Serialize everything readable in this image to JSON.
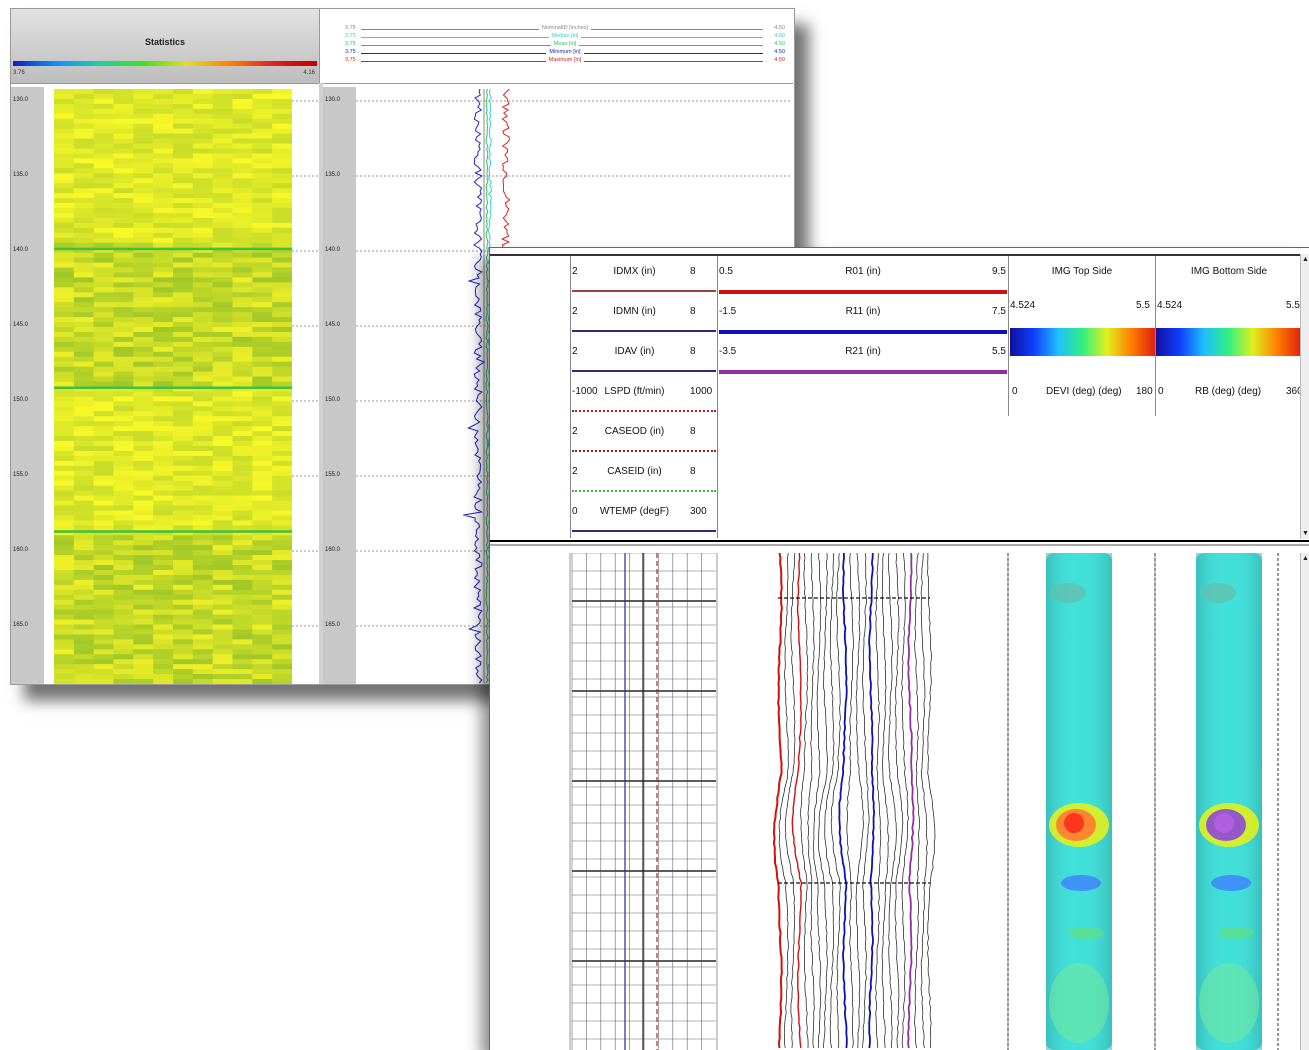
{
  "back_window": {
    "stats": {
      "title": "Statistics",
      "scale_min": "3.76",
      "scale_max": "4.16"
    },
    "legend": [
      {
        "left": "3.75",
        "name": "NominalID [inches]",
        "right": "4.50",
        "color": "#888888"
      },
      {
        "left": "3.75",
        "name": "Median [in]",
        "right": "4.50",
        "color": "#30d0d0"
      },
      {
        "left": "3.75",
        "name": "Mean [in]",
        "right": "4.50",
        "color": "#30c060"
      },
      {
        "left": "3.75",
        "name": "Minimum [in]",
        "right": "4.50",
        "color": "#2020d0"
      },
      {
        "left": "3.75",
        "name": "Maximum [in]",
        "right": "4.50",
        "color": "#e02020"
      }
    ],
    "depths": [
      "130.0",
      "135.0",
      "140.0",
      "145.0",
      "150.0",
      "155.0",
      "160.0",
      "165.0"
    ]
  },
  "front_window": {
    "track1": [
      {
        "min": "2",
        "name": "IDMX (in)",
        "max": "8"
      },
      {
        "min": "2",
        "name": "IDMN (in)",
        "max": "8"
      },
      {
        "min": "2",
        "name": "IDAV (in)",
        "max": "8"
      },
      {
        "min": "-1000",
        "name": "LSPD (ft/min)",
        "max": "1000"
      },
      {
        "min": "2",
        "name": "CASEOD (in)",
        "max": "8"
      },
      {
        "min": "2",
        "name": "CASEID (in)",
        "max": "8"
      },
      {
        "min": "0",
        "name": "WTEMP (degF)",
        "max": "300"
      }
    ],
    "track2": [
      {
        "min": "0.5",
        "name": "R01 (in)",
        "max": "9.5"
      },
      {
        "min": "-1.5",
        "name": "R11 (in)",
        "max": "7.5"
      },
      {
        "min": "-3.5",
        "name": "R21 (in)",
        "max": "5.5"
      }
    ],
    "img_top": {
      "title": "IMG Top Side",
      "min": "4.524",
      "max": "5.5",
      "curve_min": "0",
      "curve_name": "DEVI (deg) (deg)",
      "curve_max": "180"
    },
    "img_bottom": {
      "title": "IMG Bottom Side",
      "min": "4.524",
      "max": "5.5",
      "curve_min": "0",
      "curve_name": "RB (deg) (deg)",
      "curve_max": "360"
    },
    "colors": {
      "r01": "#d01010",
      "r11": "#1010b0",
      "r21": "#9030a0"
    }
  }
}
